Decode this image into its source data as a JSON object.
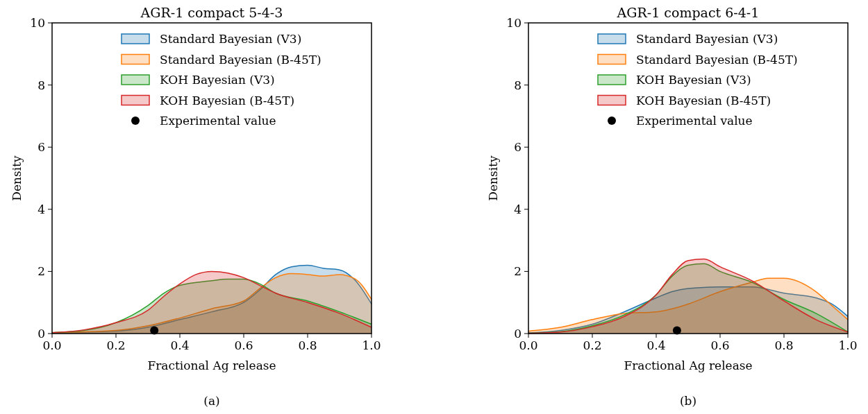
{
  "chart_data": [
    {
      "type": "area",
      "title": "AGR-1 compact 5-4-3",
      "xlabel": "Fractional Ag release",
      "ylabel": "Density",
      "xlim": [
        0,
        1
      ],
      "ylim": [
        0,
        10
      ],
      "xticks": [
        {
          "value": 0,
          "label": "0.0"
        },
        {
          "value": 0.2,
          "label": "0.2"
        },
        {
          "value": 0.4,
          "label": "0.4"
        },
        {
          "value": 0.6,
          "label": "0.6"
        },
        {
          "value": 0.8,
          "label": "0.8"
        },
        {
          "value": 1,
          "label": "1.0"
        }
      ],
      "yticks": [
        0,
        2,
        4,
        6,
        8,
        10
      ],
      "legend": "top right",
      "grid": false,
      "annotations": [
        "(a)"
      ],
      "series": [
        {
          "name": "Standard Bayesian (V3)",
          "color": "#1f77b4",
          "x": [
            0,
            0.2,
            0.3,
            0.4,
            0.5,
            0.6,
            0.65,
            0.7,
            0.75,
            0.8,
            0.85,
            0.9,
            0.95,
            1
          ],
          "values": [
            0.03,
            0.08,
            0.2,
            0.45,
            0.7,
            1.0,
            1.4,
            1.9,
            2.15,
            2.2,
            2.1,
            2.05,
            1.7,
            0.95
          ]
        },
        {
          "name": "Standard Bayesian (B-45T)",
          "color": "#ff7f0e",
          "x": [
            0,
            0.2,
            0.3,
            0.4,
            0.5,
            0.6,
            0.65,
            0.7,
            0.75,
            0.8,
            0.85,
            0.9,
            0.95,
            1
          ],
          "values": [
            0.03,
            0.1,
            0.25,
            0.5,
            0.8,
            1.05,
            1.45,
            1.8,
            1.93,
            1.9,
            1.85,
            1.9,
            1.75,
            1.1
          ]
        },
        {
          "name": "KOH Bayesian (V3)",
          "color": "#2ca02c",
          "x": [
            0,
            0.1,
            0.2,
            0.3,
            0.35,
            0.4,
            0.5,
            0.55,
            0.6,
            0.65,
            0.7,
            0.8,
            0.9,
            1
          ],
          "values": [
            0.03,
            0.1,
            0.35,
            0.9,
            1.3,
            1.55,
            1.7,
            1.75,
            1.75,
            1.6,
            1.3,
            1.05,
            0.7,
            0.3
          ]
        },
        {
          "name": "KOH Bayesian (B-45T)",
          "color": "#d62728",
          "x": [
            0,
            0.1,
            0.2,
            0.3,
            0.35,
            0.4,
            0.45,
            0.5,
            0.55,
            0.6,
            0.65,
            0.7,
            0.8,
            0.9,
            1
          ],
          "values": [
            0.03,
            0.12,
            0.35,
            0.75,
            1.2,
            1.6,
            1.9,
            2.0,
            1.95,
            1.8,
            1.55,
            1.3,
            1.0,
            0.65,
            0.2
          ]
        },
        {
          "name": "Experimental value",
          "type": "scatter",
          "color": "#000000",
          "marker": "circle",
          "x": [
            0.32
          ],
          "values": [
            0.1
          ]
        }
      ]
    },
    {
      "type": "area",
      "title": "AGR-1 compact 6-4-1",
      "xlabel": "Fractional Ag release",
      "ylabel": "Density",
      "xlim": [
        0,
        1
      ],
      "ylim": [
        0,
        10
      ],
      "xticks": [
        {
          "value": 0,
          "label": "0.0"
        },
        {
          "value": 0.2,
          "label": "0.2"
        },
        {
          "value": 0.4,
          "label": "0.4"
        },
        {
          "value": 0.6,
          "label": "0.6"
        },
        {
          "value": 0.8,
          "label": "0.8"
        },
        {
          "value": 1,
          "label": "1.0"
        }
      ],
      "yticks": [
        0,
        2,
        4,
        6,
        8,
        10
      ],
      "legend": "top right",
      "grid": false,
      "annotations": [
        "(b)"
      ],
      "series": [
        {
          "name": "Standard Bayesian (V3)",
          "color": "#1f77b4",
          "x": [
            0,
            0.1,
            0.2,
            0.3,
            0.4,
            0.45,
            0.5,
            0.6,
            0.7,
            0.8,
            0.9,
            0.95,
            1
          ],
          "values": [
            0.02,
            0.1,
            0.3,
            0.7,
            1.15,
            1.35,
            1.45,
            1.5,
            1.5,
            1.3,
            1.15,
            0.95,
            0.55
          ]
        },
        {
          "name": "Standard Bayesian (B-45T)",
          "color": "#ff7f0e",
          "x": [
            0,
            0.1,
            0.2,
            0.3,
            0.4,
            0.45,
            0.5,
            0.6,
            0.7,
            0.75,
            0.8,
            0.9,
            0.95,
            1
          ],
          "values": [
            0.08,
            0.2,
            0.45,
            0.65,
            0.7,
            0.8,
            0.95,
            1.35,
            1.65,
            1.78,
            1.78,
            1.35,
            0.9,
            0.45
          ]
        },
        {
          "name": "KOH Bayesian (V3)",
          "color": "#2ca02c",
          "x": [
            0,
            0.1,
            0.2,
            0.3,
            0.4,
            0.45,
            0.5,
            0.55,
            0.6,
            0.7,
            0.8,
            0.9,
            1
          ],
          "values": [
            0.01,
            0.06,
            0.25,
            0.6,
            1.25,
            1.85,
            2.2,
            2.25,
            2.0,
            1.65,
            1.1,
            0.65,
            0.05
          ]
        },
        {
          "name": "KOH Bayesian (B-45T)",
          "color": "#d62728",
          "x": [
            0,
            0.1,
            0.2,
            0.3,
            0.4,
            0.45,
            0.5,
            0.55,
            0.6,
            0.7,
            0.8,
            0.9,
            1
          ],
          "values": [
            0.01,
            0.05,
            0.22,
            0.55,
            1.25,
            1.9,
            2.35,
            2.4,
            2.15,
            1.7,
            1.05,
            0.45,
            0.05
          ]
        },
        {
          "name": "Experimental value",
          "type": "scatter",
          "color": "#000000",
          "marker": "circle",
          "x": [
            0.465
          ],
          "values": [
            0.1
          ]
        }
      ]
    }
  ]
}
